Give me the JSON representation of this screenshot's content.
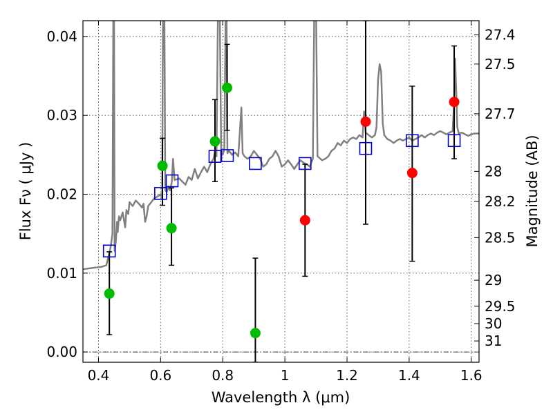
{
  "chart_data": {
    "type": "scatter",
    "xlabel": "Wavelength  λ (μm)",
    "ylabel": "Flux  Fν  ( μJy )",
    "y2label": "Magnitude (AB)",
    "xlim": [
      0.35,
      1.625
    ],
    "ylim": [
      -0.0013,
      0.042
    ],
    "grid": true,
    "x_ticks": [
      0.4,
      0.6,
      0.8,
      1.0,
      1.2,
      1.4,
      1.6
    ],
    "x_tick_labels": [
      "0.4",
      "0.6",
      "0.8",
      "1",
      "1.2",
      "1.4",
      "1.6"
    ],
    "y_ticks": [
      0.0,
      0.01,
      0.02,
      0.03,
      0.04
    ],
    "y_tick_labels": [
      "0.00",
      "0.01",
      "0.02",
      "0.03",
      "0.04"
    ],
    "y2_ticks": [
      {
        "label": "27.4",
        "flux": 0.0402
      },
      {
        "label": "27.5",
        "flux": 0.0365
      },
      {
        "label": "27.7",
        "flux": 0.0302
      },
      {
        "label": "28",
        "flux": 0.0229
      },
      {
        "label": "28.2",
        "flux": 0.0191
      },
      {
        "label": "28.5",
        "flux": 0.0145
      },
      {
        "label": "29",
        "flux": 0.0091
      },
      {
        "label": "29.5",
        "flux": 0.0058
      },
      {
        "label": "30",
        "flux": 0.0036
      },
      {
        "label": "31",
        "flux": 0.0014
      }
    ],
    "colors": {
      "spectrum": "#808080",
      "green": "#00bb00",
      "red": "#ff0000",
      "model": "#0000cc",
      "errorbar": "#000000"
    },
    "spectrum": [
      [
        0.35,
        0.0105
      ],
      [
        0.37,
        0.0106
      ],
      [
        0.39,
        0.0107
      ],
      [
        0.41,
        0.0108
      ],
      [
        0.425,
        0.011
      ],
      [
        0.435,
        0.0125
      ],
      [
        0.44,
        0.0135
      ],
      [
        0.445,
        0.015
      ],
      [
        0.448,
        0.045
      ],
      [
        0.45,
        0.045
      ],
      [
        0.452,
        0.0128
      ],
      [
        0.456,
        0.014
      ],
      [
        0.46,
        0.0165
      ],
      [
        0.462,
        0.0152
      ],
      [
        0.466,
        0.0172
      ],
      [
        0.47,
        0.0167
      ],
      [
        0.478,
        0.0177
      ],
      [
        0.486,
        0.0158
      ],
      [
        0.49,
        0.018
      ],
      [
        0.496,
        0.0175
      ],
      [
        0.5,
        0.019
      ],
      [
        0.51,
        0.0185
      ],
      [
        0.52,
        0.0192
      ],
      [
        0.53,
        0.0188
      ],
      [
        0.54,
        0.0183
      ],
      [
        0.545,
        0.0188
      ],
      [
        0.55,
        0.0165
      ],
      [
        0.555,
        0.0172
      ],
      [
        0.56,
        0.0185
      ],
      [
        0.57,
        0.019
      ],
      [
        0.58,
        0.0195
      ],
      [
        0.59,
        0.0197
      ],
      [
        0.6,
        0.02
      ],
      [
        0.605,
        0.0195
      ],
      [
        0.608,
        0.045
      ],
      [
        0.612,
        0.045
      ],
      [
        0.615,
        0.0205
      ],
      [
        0.62,
        0.0203
      ],
      [
        0.625,
        0.021
      ],
      [
        0.63,
        0.0205
      ],
      [
        0.636,
        0.0215
      ],
      [
        0.64,
        0.0245
      ],
      [
        0.645,
        0.0218
      ],
      [
        0.66,
        0.022
      ],
      [
        0.68,
        0.0212
      ],
      [
        0.69,
        0.0222
      ],
      [
        0.7,
        0.0218
      ],
      [
        0.71,
        0.0232
      ],
      [
        0.72,
        0.022
      ],
      [
        0.73,
        0.0228
      ],
      [
        0.74,
        0.0235
      ],
      [
        0.75,
        0.0228
      ],
      [
        0.76,
        0.0238
      ],
      [
        0.77,
        0.0245
      ],
      [
        0.775,
        0.0255
      ],
      [
        0.78,
        0.0248
      ],
      [
        0.785,
        0.045
      ],
      [
        0.79,
        0.045
      ],
      [
        0.795,
        0.0252
      ],
      [
        0.8,
        0.025
      ],
      [
        0.805,
        0.0257
      ],
      [
        0.81,
        0.045
      ],
      [
        0.812,
        0.045
      ],
      [
        0.815,
        0.0252
      ],
      [
        0.82,
        0.0255
      ],
      [
        0.83,
        0.025
      ],
      [
        0.84,
        0.0253
      ],
      [
        0.85,
        0.0248
      ],
      [
        0.86,
        0.031
      ],
      [
        0.864,
        0.0252
      ],
      [
        0.87,
        0.0248
      ],
      [
        0.88,
        0.0245
      ],
      [
        0.89,
        0.0248
      ],
      [
        0.9,
        0.0255
      ],
      [
        0.91,
        0.025
      ],
      [
        0.92,
        0.0245
      ],
      [
        0.93,
        0.0235
      ],
      [
        0.94,
        0.0238
      ],
      [
        0.95,
        0.0245
      ],
      [
        0.96,
        0.0248
      ],
      [
        0.97,
        0.0255
      ],
      [
        0.98,
        0.0248
      ],
      [
        0.99,
        0.0235
      ],
      [
        1.0,
        0.0238
      ],
      [
        1.01,
        0.0243
      ],
      [
        1.02,
        0.0238
      ],
      [
        1.03,
        0.0232
      ],
      [
        1.04,
        0.0238
      ],
      [
        1.05,
        0.0243
      ],
      [
        1.06,
        0.024
      ],
      [
        1.07,
        0.0238
      ],
      [
        1.08,
        0.0235
      ],
      [
        1.09,
        0.0245
      ],
      [
        1.095,
        0.045
      ],
      [
        1.1,
        0.045
      ],
      [
        1.105,
        0.0248
      ],
      [
        1.12,
        0.0243
      ],
      [
        1.13,
        0.0245
      ],
      [
        1.14,
        0.0248
      ],
      [
        1.15,
        0.0255
      ],
      [
        1.16,
        0.0258
      ],
      [
        1.17,
        0.0265
      ],
      [
        1.18,
        0.0262
      ],
      [
        1.19,
        0.0268
      ],
      [
        1.2,
        0.0265
      ],
      [
        1.21,
        0.027
      ],
      [
        1.22,
        0.0272
      ],
      [
        1.23,
        0.027
      ],
      [
        1.24,
        0.0275
      ],
      [
        1.25,
        0.0272
      ],
      [
        1.255,
        0.0305
      ],
      [
        1.26,
        0.0278
      ],
      [
        1.27,
        0.0275
      ],
      [
        1.28,
        0.0272
      ],
      [
        1.29,
        0.0275
      ],
      [
        1.295,
        0.0285
      ],
      [
        1.3,
        0.0345
      ],
      [
        1.305,
        0.0365
      ],
      [
        1.31,
        0.0355
      ],
      [
        1.315,
        0.029
      ],
      [
        1.32,
        0.0275
      ],
      [
        1.33,
        0.027
      ],
      [
        1.34,
        0.0268
      ],
      [
        1.35,
        0.0265
      ],
      [
        1.36,
        0.0268
      ],
      [
        1.37,
        0.027
      ],
      [
        1.38,
        0.0268
      ],
      [
        1.39,
        0.027
      ],
      [
        1.4,
        0.0272
      ],
      [
        1.41,
        0.0268
      ],
      [
        1.42,
        0.027
      ],
      [
        1.43,
        0.0272
      ],
      [
        1.44,
        0.0275
      ],
      [
        1.45,
        0.0272
      ],
      [
        1.46,
        0.0275
      ],
      [
        1.47,
        0.0277
      ],
      [
        1.48,
        0.0275
      ],
      [
        1.49,
        0.0278
      ],
      [
        1.5,
        0.028
      ],
      [
        1.51,
        0.0278
      ],
      [
        1.52,
        0.0276
      ],
      [
        1.53,
        0.0278
      ],
      [
        1.54,
        0.028
      ],
      [
        1.545,
        0.0318
      ],
      [
        1.548,
        0.0372
      ],
      [
        1.552,
        0.0325
      ],
      [
        1.555,
        0.0285
      ],
      [
        1.56,
        0.0277
      ],
      [
        1.57,
        0.0278
      ],
      [
        1.58,
        0.0276
      ],
      [
        1.59,
        0.0274
      ],
      [
        1.6,
        0.0276
      ],
      [
        1.61,
        0.0277
      ],
      [
        1.625,
        0.0277
      ]
    ],
    "series": [
      {
        "marker": "circle",
        "color": "#00bb00",
        "points": [
          {
            "x": 0.435,
            "y": 0.0074,
            "yerr_low": 0.0022,
            "yerr_high": 0.0127
          },
          {
            "x": 0.606,
            "y": 0.0236,
            "yerr_low": 0.0186,
            "yerr_high": 0.0271
          },
          {
            "x": 0.635,
            "y": 0.0157,
            "yerr_low": 0.011,
            "yerr_high": 0.0208
          },
          {
            "x": 0.775,
            "y": 0.0267,
            "yerr_low": 0.0216,
            "yerr_high": 0.032
          },
          {
            "x": 0.814,
            "y": 0.0335,
            "yerr_low": 0.0281,
            "yerr_high": 0.039
          },
          {
            "x": 0.905,
            "y": 0.0024,
            "yerr_low": -0.0013,
            "yerr_high": 0.0119
          }
        ]
      },
      {
        "marker": "circle",
        "color": "#ff0000",
        "points": [
          {
            "x": 1.065,
            "y": 0.0167,
            "yerr_low": 0.0096,
            "yerr_high": 0.0238
          },
          {
            "x": 1.26,
            "y": 0.0292,
            "yerr_low": 0.0162,
            "yerr_high": 0.042
          },
          {
            "x": 1.41,
            "y": 0.0227,
            "yerr_low": 0.0115,
            "yerr_high": 0.0337
          },
          {
            "x": 1.545,
            "y": 0.0317,
            "yerr_low": 0.0245,
            "yerr_high": 0.0388
          }
        ]
      },
      {
        "marker": "open-square",
        "color": "#0000cc",
        "points": [
          {
            "x": 0.435,
            "y": 0.0128
          },
          {
            "x": 0.6,
            "y": 0.0201
          },
          {
            "x": 0.637,
            "y": 0.0217
          },
          {
            "x": 0.775,
            "y": 0.0248
          },
          {
            "x": 0.815,
            "y": 0.0249
          },
          {
            "x": 0.905,
            "y": 0.0239
          },
          {
            "x": 1.065,
            "y": 0.0239
          },
          {
            "x": 1.26,
            "y": 0.0258
          },
          {
            "x": 1.41,
            "y": 0.0268
          },
          {
            "x": 1.545,
            "y": 0.0268
          }
        ]
      }
    ]
  }
}
